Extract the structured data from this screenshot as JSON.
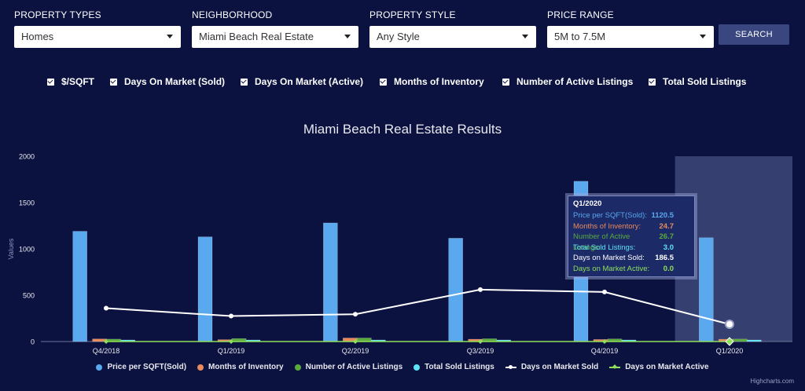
{
  "filters": [
    {
      "label": "PROPERTY TYPES",
      "value": "Homes"
    },
    {
      "label": "NEIGHBORHOOD",
      "value": "Miami Beach Real Estate"
    },
    {
      "label": "PROPERTY STYLE",
      "value": "Any Style"
    },
    {
      "label": "PRICE RANGE",
      "value": "5M to 7.5M"
    }
  ],
  "search_label": "SEARCH",
  "checkboxes": [
    {
      "label": "$/SQFT",
      "checked": true
    },
    {
      "label": "Days On Market (Sold)",
      "checked": true
    },
    {
      "label": "Days On Market (Active)",
      "checked": true
    },
    {
      "label": "Months of Inventory",
      "checked": true
    },
    {
      "label": "Number of Active Listings",
      "checked": true
    },
    {
      "label": "Total Sold Listings",
      "checked": true
    }
  ],
  "chart_data": {
    "type": "bar",
    "title": "Miami Beach Real Estate Results",
    "ylabel": "Values",
    "ylim": [
      0,
      2000
    ],
    "yticks": [
      0,
      500,
      1000,
      1500,
      2000
    ],
    "categories": [
      "Q4/2018",
      "Q1/2019",
      "Q2/2019",
      "Q3/2019",
      "Q4/2019",
      "Q1/2020"
    ],
    "highlighted_category": "Q1/2020",
    "series": [
      {
        "name": "Price per SQFT(Sold)",
        "kind": "bar",
        "color": "#5aa8ee",
        "values": [
          1190,
          1130,
          1280,
          1115,
          1730,
          1120.5
        ]
      },
      {
        "name": "Months of Inventory",
        "kind": "bar",
        "color": "#e98a5b",
        "values": [
          28,
          20,
          38,
          25,
          22,
          24.7
        ]
      },
      {
        "name": "Number of Active Listings",
        "kind": "bar",
        "color": "#5aaa3c",
        "values": [
          26,
          32,
          38,
          30,
          28,
          26.7
        ]
      },
      {
        "name": "Total Sold Listings",
        "kind": "bar",
        "color": "#5ee2f7",
        "values": [
          3,
          2,
          4,
          3,
          4,
          3.0
        ]
      },
      {
        "name": "Days on Market Sold",
        "kind": "line",
        "color": "#ffffff",
        "values": [
          360,
          275,
          295,
          560,
          535,
          186.5
        ]
      },
      {
        "name": "Days on Market Active",
        "kind": "line",
        "color": "#8ee05a",
        "values": [
          0,
          0,
          0,
          0,
          0,
          0.0
        ]
      }
    ],
    "legend_position": "bottom",
    "credit": "Highcharts.com"
  },
  "tooltip": {
    "header": "Q1/2020",
    "rows": [
      {
        "label": "Price per SQFT(Sold):",
        "value": "1120.5",
        "color": "#5aa8ee"
      },
      {
        "label": "Months of Inventory:",
        "value": "24.7",
        "color": "#e98a5b"
      },
      {
        "label": "Number of Active Listings:",
        "value": "26.7",
        "color": "#5aaa3c"
      },
      {
        "label": "Total Sold Listings:",
        "value": "3.0",
        "color": "#5ee2f7"
      },
      {
        "label": "Days on Market Sold:",
        "value": "186.5",
        "color": "#ffffff"
      },
      {
        "label": "Days on Market Active:",
        "value": "0.0",
        "color": "#8ee05a"
      }
    ]
  }
}
